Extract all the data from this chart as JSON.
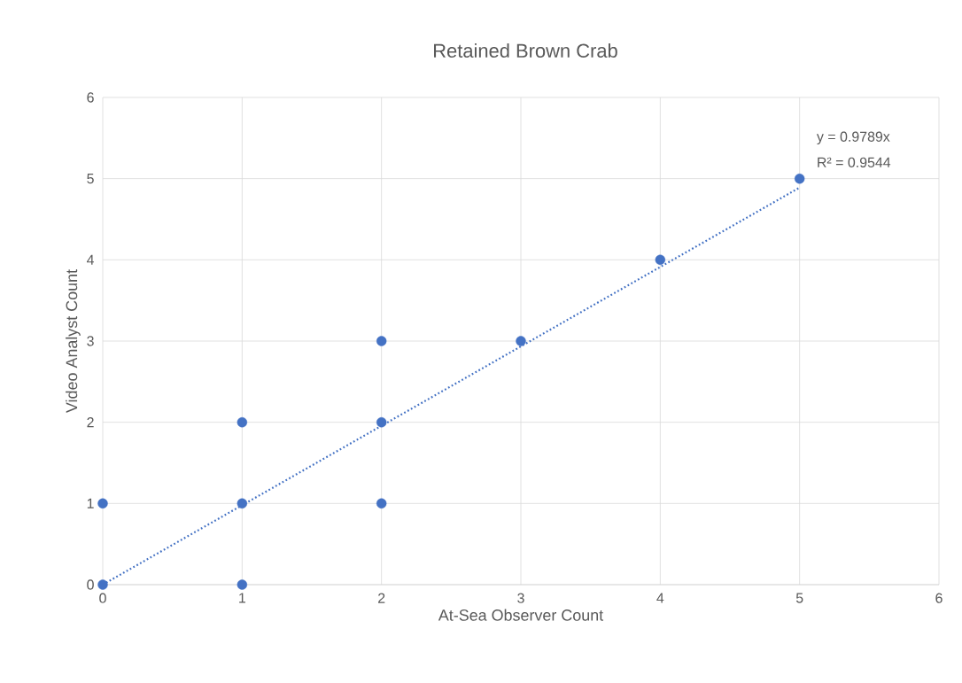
{
  "chart_data": {
    "type": "scatter",
    "title": "Retained Brown Crab",
    "xlabel": "At-Sea Observer Count",
    "ylabel": "Video Analyst Count",
    "xlim": [
      0,
      6
    ],
    "ylim": [
      0,
      6
    ],
    "xticks": [
      0,
      1,
      2,
      3,
      4,
      5,
      6
    ],
    "yticks": [
      0,
      1,
      2,
      3,
      4,
      5,
      6
    ],
    "grid": true,
    "series": [
      {
        "color": "#4472c4",
        "marker": "circle",
        "x": [
          0,
          0,
          1,
          1,
          1,
          2,
          2,
          2,
          3,
          4,
          5
        ],
        "values": [
          0,
          1,
          0,
          1,
          2,
          1,
          2,
          3,
          3,
          4,
          5
        ]
      },
      {
        "type": "line",
        "color": "#4472c4",
        "marker": "none",
        "line_style": "dotted",
        "x": [
          0,
          5
        ],
        "values": [
          0,
          4.89
        ]
      }
    ],
    "annotations": [
      "y = 0.9789x",
      "R² = 0.9544"
    ]
  }
}
